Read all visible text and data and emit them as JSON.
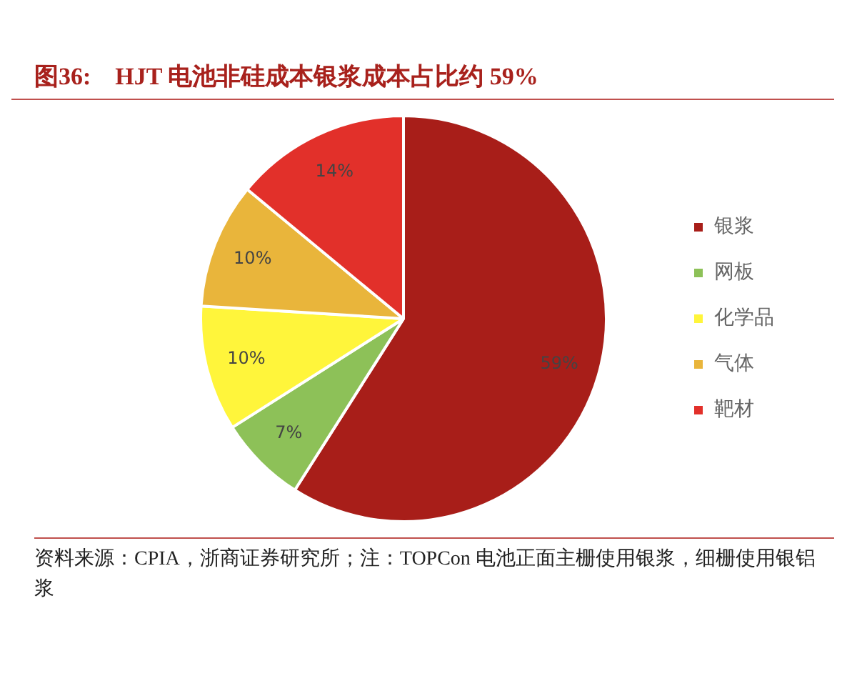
{
  "chart_data": {
    "type": "pie",
    "title": "图36:　HJT 电池非硅成本银浆成本占比约 59%",
    "categories": [
      "银浆",
      "网板",
      "化学品",
      "气体",
      "靶材"
    ],
    "values": [
      59,
      7,
      10,
      10,
      14
    ],
    "colors": [
      "#a81e19",
      "#8dc158",
      "#fff53b",
      "#e9b53b",
      "#e2302a"
    ],
    "value_labels": [
      "59%",
      "7%",
      "10%",
      "10%",
      "14%"
    ],
    "legend": "right",
    "annotations": [
      "资料来源：CPIA，浙商证券研究所；注：TOPCon 电池正面主栅使用银浆，细栅使用银铝浆"
    ]
  }
}
